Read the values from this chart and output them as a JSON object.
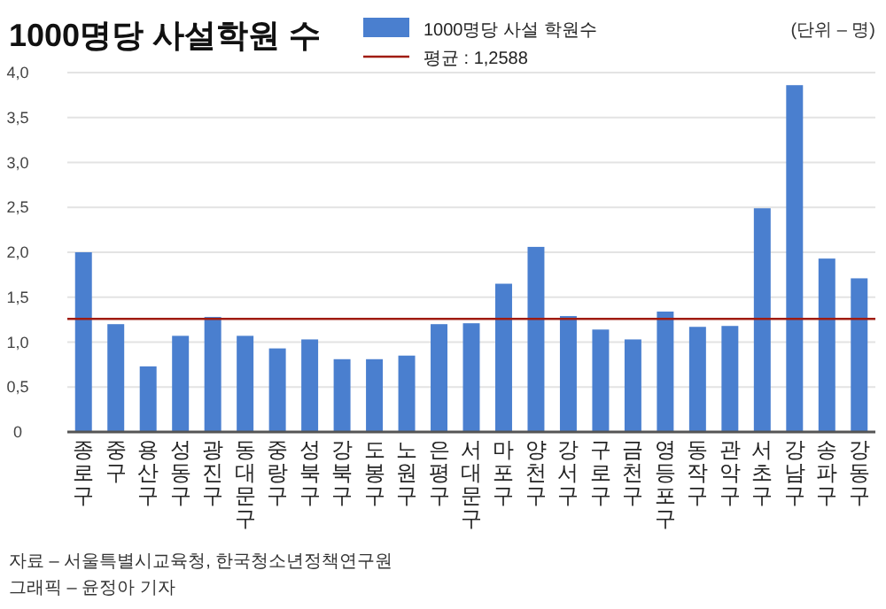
{
  "chart_data": {
    "type": "bar",
    "title": "1000명당 사설학원 수",
    "subtitle": "(단위 – 명)",
    "categories": [
      "종로구",
      "중구",
      "용산구",
      "성동구",
      "광진구",
      "동대문구",
      "중랑구",
      "성북구",
      "강북구",
      "도봉구",
      "노원구",
      "은평구",
      "서대문구",
      "마포구",
      "양천구",
      "강서구",
      "구로구",
      "금천구",
      "영등포구",
      "동작구",
      "관악구",
      "서초구",
      "강남구",
      "송파구",
      "강동구"
    ],
    "series": [
      {
        "name": "1000명당 사설 학원수",
        "color": "#4a7fcf",
        "values": [
          2.0,
          1.2,
          0.73,
          1.07,
          1.28,
          1.07,
          0.93,
          1.03,
          0.81,
          0.81,
          0.85,
          1.2,
          1.21,
          1.65,
          2.06,
          1.29,
          1.14,
          1.03,
          1.34,
          1.17,
          1.18,
          2.49,
          3.86,
          1.93,
          1.71
        ]
      }
    ],
    "ylim": [
      0,
      4
    ],
    "yticks": [
      {
        "value": 0,
        "label": "0"
      },
      {
        "value": 0.5,
        "label": "0,5"
      },
      {
        "value": 1,
        "label": "1,0"
      },
      {
        "value": 1.5,
        "label": "1,5"
      },
      {
        "value": 2,
        "label": "2,0"
      },
      {
        "value": 2.5,
        "label": "2,5"
      },
      {
        "value": 3,
        "label": "3,0"
      },
      {
        "value": 3.5,
        "label": "3,5"
      },
      {
        "value": 4,
        "label": "4,0"
      }
    ],
    "ref_lines": [
      {
        "axis": "y",
        "value": 1.2588,
        "label": "평균 : 1,2588",
        "color": "#a01c10"
      }
    ],
    "grid": "y",
    "legend": "top",
    "annotations": [
      "자료 – 서울특별시교육청, 한국청소년정책연구원",
      "그래픽 – 윤정아 기자"
    ]
  }
}
